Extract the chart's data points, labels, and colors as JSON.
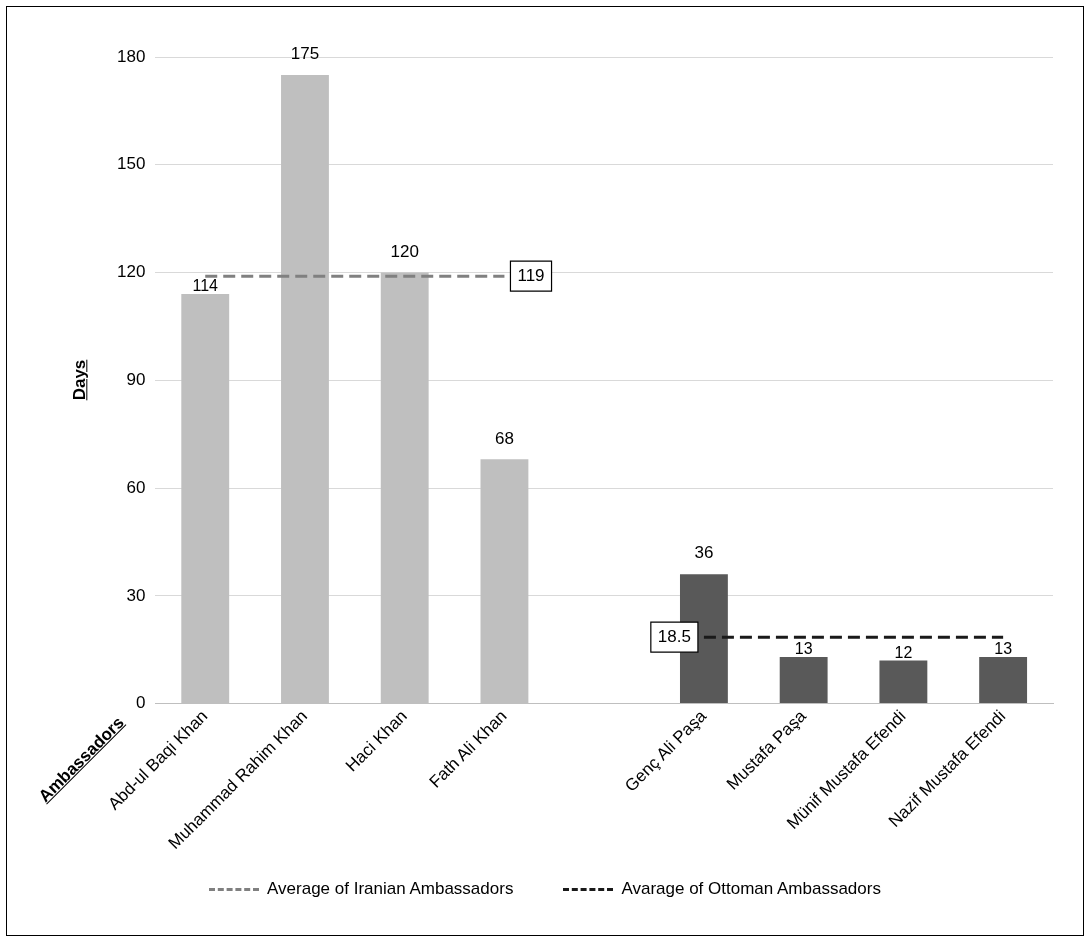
{
  "chart_data": {
    "type": "bar",
    "xlabel": "Ambassadors",
    "ylabel": "Days",
    "categories": [
      "Abd-ul Baqi Khan",
      "Muhammad Rahim Khan",
      "Haci Khan",
      "Fath Ali Khan",
      null,
      "Genç Ali Paşa",
      "Mustafa Paşa",
      "Münif Mustafa Efendi",
      "Nazif Mustafa Efendi"
    ],
    "series": [
      {
        "colors": [
          "#bfbfbf",
          "#bfbfbf",
          "#bfbfbf",
          "#bfbfbf",
          "#bfbfbf",
          "#595959",
          "#595959",
          "#595959",
          "#595959"
        ],
        "values": [
          114,
          175,
          120,
          68,
          null,
          36,
          13,
          12,
          13
        ],
        "value_labels": [
          "114",
          "175",
          "120",
          "68",
          null,
          "36",
          "13",
          "12",
          "13"
        ]
      },
      {
        "type": "line",
        "name": "Average of Iranian Ambassadors",
        "color": "#808080",
        "line_style": "dashed",
        "values": [
          119,
          119,
          119,
          119,
          null,
          null,
          null,
          null,
          null
        ],
        "value_labels": [
          null,
          null,
          null,
          "119",
          null,
          null,
          null,
          null,
          null
        ]
      },
      {
        "type": "line",
        "name": "Avarage of Ottoman Ambassadors",
        "color": "#1a1a1a",
        "line_style": "dashed",
        "values": [
          null,
          null,
          null,
          null,
          null,
          18.5,
          18.5,
          18.5,
          18.5
        ],
        "value_labels": [
          null,
          null,
          null,
          null,
          null,
          "18.5",
          null,
          null,
          null
        ]
      }
    ],
    "ylim": [
      0,
      180
    ],
    "yticks": [
      0,
      30,
      60,
      90,
      120,
      150,
      180
    ],
    "grid": "y",
    "legend": "bottom",
    "marker": "none"
  }
}
